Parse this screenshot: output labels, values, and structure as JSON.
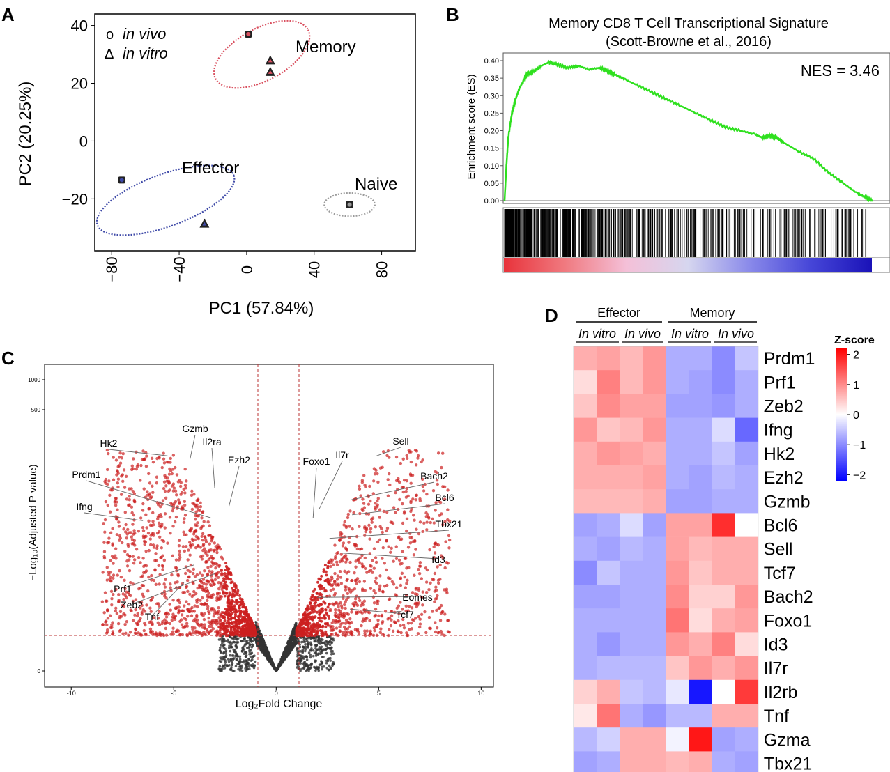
{
  "panel_labels": [
    "A",
    "B",
    "C",
    "D"
  ],
  "chart_data": [
    {
      "panel": "A",
      "type": "scatter",
      "xlabel": "PC1 (57.84%)",
      "ylabel": "PC2 (20.25%)",
      "xlim": [
        -90,
        100
      ],
      "ylim": [
        -38,
        44
      ],
      "xticks": [
        -80,
        -40,
        0,
        40,
        80
      ],
      "yticks": [
        40,
        20,
        0,
        -20
      ],
      "xtick_labels": [
        "−80",
        "−40",
        "0",
        "40",
        "80"
      ],
      "ytick_labels": [
        "40",
        "20",
        "0",
        "−20"
      ],
      "legend": [
        {
          "symbol": "o",
          "label": "in vivo"
        },
        {
          "symbol": "Δ",
          "label": "in vitro"
        }
      ],
      "groups": [
        {
          "name": "Memory",
          "color": "#d9505f"
        },
        {
          "name": "Effector",
          "color": "#3f4aa8"
        },
        {
          "name": "Naive",
          "color": "#9a9a9a"
        }
      ],
      "points": [
        {
          "group": "Memory",
          "x": 1,
          "y": 37,
          "shape": "circle"
        },
        {
          "group": "Memory",
          "x": 14,
          "y": 28,
          "shape": "triangle"
        },
        {
          "group": "Memory",
          "x": 14,
          "y": 24,
          "shape": "triangle"
        },
        {
          "group": "Effector",
          "x": -74,
          "y": -13.5,
          "shape": "circle"
        },
        {
          "group": "Effector",
          "x": -25,
          "y": -28.5,
          "shape": "triangle"
        },
        {
          "group": "Naive",
          "x": 61,
          "y": -22,
          "shape": "circle"
        }
      ],
      "ellipses": [
        {
          "group": "Memory",
          "cx": 9,
          "cy": 30,
          "rx": 31,
          "ry": 9,
          "angle_deg": -28
        },
        {
          "group": "Effector",
          "cx": -48,
          "cy": -20.5,
          "rx": 43,
          "ry": 9,
          "angle_deg": -20
        },
        {
          "group": "Naive",
          "cx": 61,
          "cy": -22,
          "rx": 15,
          "ry": 4,
          "angle_deg": 0
        }
      ]
    },
    {
      "panel": "B",
      "type": "line",
      "title": "Memory CD8 T Cell Transcriptional Signature",
      "subtitle": "(Scott-Browne et al., 2016)",
      "ylabel": "Enrichment score (ES)",
      "annotation": "NES = 3.46",
      "ylim": [
        0,
        0.4
      ],
      "yticks": [
        0.4,
        0.35,
        0.3,
        0.25,
        0.2,
        0.15,
        0.1,
        0.05,
        0.0
      ],
      "ytick_labels": [
        "0.40",
        "0.35",
        "0.30",
        "0.25",
        "0.20",
        "0.15",
        "0.10",
        "0.05",
        "0.00"
      ],
      "x": [
        0,
        0.005,
        0.01,
        0.02,
        0.03,
        0.04,
        0.05,
        0.06,
        0.08,
        0.1,
        0.12,
        0.14,
        0.17,
        0.2,
        0.23,
        0.26,
        0.28,
        0.3,
        0.33,
        0.36,
        0.4,
        0.44,
        0.48,
        0.52,
        0.56,
        0.6,
        0.64,
        0.68,
        0.7,
        0.72,
        0.74,
        0.76,
        0.8,
        0.84,
        0.88,
        0.92,
        0.96,
        0.98,
        1.0
      ],
      "es": [
        0,
        0.1,
        0.18,
        0.25,
        0.29,
        0.32,
        0.34,
        0.36,
        0.37,
        0.385,
        0.395,
        0.39,
        0.38,
        0.385,
        0.375,
        0.38,
        0.37,
        0.36,
        0.345,
        0.33,
        0.31,
        0.29,
        0.27,
        0.25,
        0.23,
        0.21,
        0.2,
        0.19,
        0.18,
        0.185,
        0.18,
        0.165,
        0.14,
        0.12,
        0.08,
        0.05,
        0.02,
        0.01,
        0
      ],
      "line_color": "#2fe01f",
      "gradient_colors": [
        "#e8333b",
        "#f07a80",
        "#f4c0d8",
        "#d6d6ef",
        "#8a8aea",
        "#4646d8",
        "#1a12b8"
      ]
    },
    {
      "panel": "C",
      "type": "scatter",
      "xlabel": "Log₂Fold Change",
      "ylabel": "−Log₁₀(Adjusted P value)",
      "xlim": [
        -11.3,
        10.6
      ],
      "xticks": [
        -10,
        -5,
        0,
        5,
        10
      ],
      "xtick_labels": [
        "-10",
        "-5",
        "0",
        "5",
        "10"
      ],
      "yticks": [
        0,
        500,
        1000
      ],
      "ytick_labels": [
        "0",
        "500",
        "1000"
      ],
      "fc_threshold": 1,
      "sig_color": "#cc1f1f",
      "nonsig_color": "#333333",
      "labels_left": [
        {
          "gene": "Hk2",
          "x": -5.3,
          "y": 0.73
        },
        {
          "gene": "Gzmb",
          "x": -4.2,
          "y": 0.72
        },
        {
          "gene": "Il2ra",
          "x": -3.0,
          "y": 0.62
        },
        {
          "gene": "Ezh2",
          "x": -2.3,
          "y": 0.56
        },
        {
          "gene": "Prdm1",
          "x": -3.2,
          "y": 0.52
        },
        {
          "gene": "Ifng",
          "x": -6.5,
          "y": 0.51
        },
        {
          "gene": "Prf1",
          "x": -4.0,
          "y": 0.36
        },
        {
          "gene": "Zeb2",
          "x": -3.0,
          "y": 0.33
        },
        {
          "gene": "Tnf",
          "x": -4.5,
          "y": 0.3
        }
      ],
      "labels_right": [
        {
          "gene": "Sell",
          "x": 4.9,
          "y": 0.73
        },
        {
          "gene": "Foxo1",
          "x": 1.8,
          "y": 0.52
        },
        {
          "gene": "Il7r",
          "x": 2.1,
          "y": 0.55
        },
        {
          "gene": "Bach2",
          "x": 3.6,
          "y": 0.58
        },
        {
          "gene": "Bcl6",
          "x": 3.7,
          "y": 0.53
        },
        {
          "gene": "Tbx21",
          "x": 2.6,
          "y": 0.45
        },
        {
          "gene": "Id3",
          "x": 3.2,
          "y": 0.4
        },
        {
          "gene": "Eomes",
          "x": 2.0,
          "y": 0.25
        },
        {
          "gene": "Tcf7",
          "x": 3.6,
          "y": 0.21
        }
      ]
    },
    {
      "panel": "D",
      "type": "heatmap",
      "group_labels": [
        "Effector",
        "Memory"
      ],
      "subgroup_labels": [
        "In vitro",
        "In vivo",
        "In vitro",
        "In vivo"
      ],
      "legend_title": "Z-score",
      "legend_ticks": [
        2,
        1,
        0,
        -1,
        -2
      ],
      "legend_tick_labels": [
        "2",
        "1",
        "0",
        "−1",
        "−2"
      ],
      "zlim": [
        -2.2,
        2.2
      ],
      "rows": [
        "Prdm1",
        "Prf1",
        "Zeb2",
        "Ifng",
        "Hk2",
        "Ezh2",
        "Gzmb",
        "Bcl6",
        "Sell",
        "Tcf7",
        "Bach2",
        "Foxo1",
        "Id3",
        "Il7r",
        "Il2rb",
        "Tnf",
        "Gzma",
        "Tbx21"
      ],
      "values": [
        [
          0.7,
          0.8,
          0.6,
          0.9,
          -0.7,
          -0.7,
          -1.0,
          -0.5
        ],
        [
          0.3,
          1.1,
          0.6,
          0.9,
          -0.7,
          -0.8,
          -1.0,
          -0.7
        ],
        [
          0.5,
          1.0,
          0.8,
          0.8,
          -0.8,
          -0.8,
          -0.9,
          -0.7
        ],
        [
          0.9,
          0.5,
          0.6,
          0.9,
          -0.7,
          -0.7,
          -0.3,
          -1.3
        ],
        [
          0.7,
          0.9,
          0.8,
          0.7,
          -0.7,
          -0.7,
          -0.5,
          -0.8
        ],
        [
          0.7,
          0.7,
          0.7,
          0.8,
          -0.7,
          -0.8,
          -0.6,
          -0.7
        ],
        [
          0.6,
          0.6,
          0.6,
          0.7,
          -0.8,
          -0.8,
          -0.7,
          -0.7
        ],
        [
          -0.8,
          -0.7,
          -0.3,
          -0.8,
          0.8,
          0.8,
          1.8,
          0.0
        ],
        [
          -0.7,
          -0.8,
          -0.6,
          -0.7,
          0.8,
          0.6,
          0.7,
          0.7
        ],
        [
          -1.0,
          -0.5,
          -0.7,
          -0.7,
          0.9,
          0.5,
          0.7,
          0.7
        ],
        [
          -0.8,
          -0.8,
          -0.7,
          -0.7,
          1.0,
          0.4,
          0.4,
          0.9
        ],
        [
          -0.7,
          -0.7,
          -0.7,
          -0.7,
          1.2,
          0.3,
          0.7,
          0.8
        ],
        [
          -0.7,
          -0.9,
          -0.7,
          -0.7,
          0.9,
          0.7,
          1.1,
          0.3
        ],
        [
          -0.7,
          -0.6,
          -0.6,
          -0.6,
          0.5,
          0.9,
          0.7,
          0.9
        ],
        [
          0.4,
          0.7,
          -0.5,
          -0.6,
          -0.2,
          -2.0,
          0.0,
          1.7
        ],
        [
          0.2,
          1.2,
          -0.7,
          -0.9,
          -0.6,
          -0.6,
          0.7,
          0.7
        ],
        [
          -0.6,
          -0.4,
          0.7,
          0.7,
          -0.1,
          2.0,
          -0.8,
          -0.7
        ],
        [
          -0.8,
          -0.7,
          0.7,
          0.7,
          0.6,
          0.7,
          -0.7,
          -0.8
        ]
      ]
    }
  ]
}
